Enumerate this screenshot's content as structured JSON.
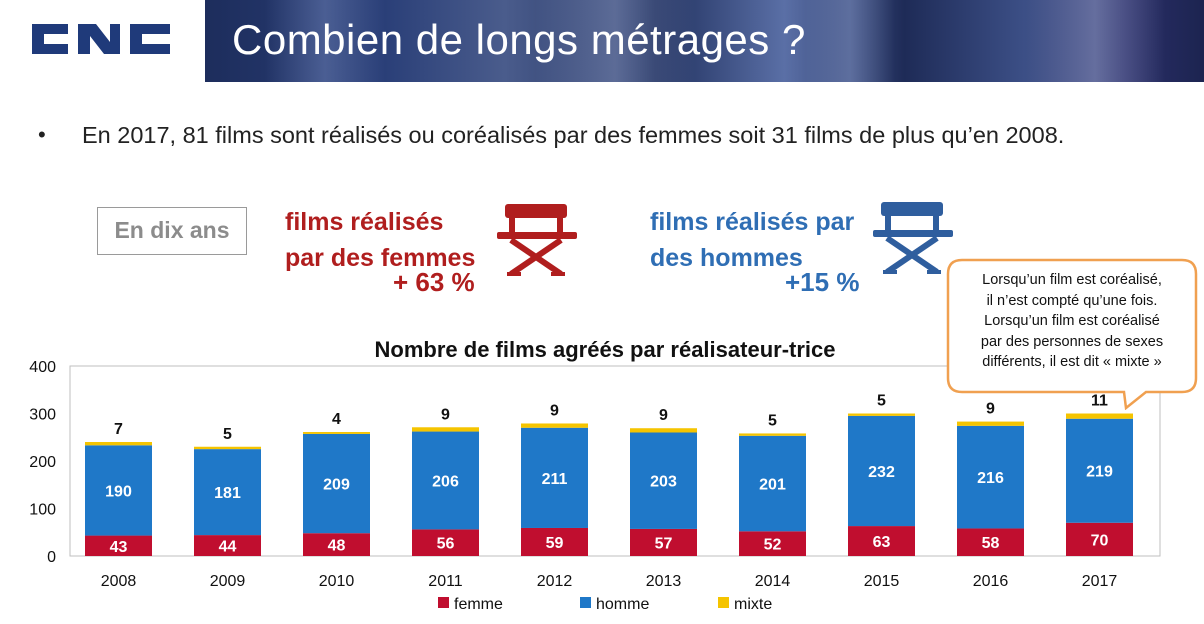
{
  "header": {
    "logo_text": "CNC",
    "title": "Combien de longs métrages ?"
  },
  "bullet": {
    "symbol": "•",
    "text": "En 2017, 81 films sont réalisés ou coréalisés par des femmes soit 31 films de plus qu’en 2008."
  },
  "summary": {
    "box_label": "En dix ans",
    "women": {
      "line1": "films réalisés",
      "line2": "par des femmes",
      "change": "+ 63 %",
      "icon": "director-chair-icon",
      "color": "#b01e1e"
    },
    "men": {
      "line1": "films réalisés par",
      "line2": "des hommes",
      "change": "+15 %",
      "icon": "director-chair-icon",
      "color": "#2f6eb4"
    }
  },
  "callout": {
    "lines": [
      "Lorsqu’un film est coréalisé,",
      "il n’est compté qu’une fois.",
      "Lorsqu’un film est coréalisé",
      "par des personnes de sexes",
      "différents, il est dit « mixte »"
    ],
    "border_color": "#f0a050"
  },
  "chart_data": {
    "type": "bar",
    "stacked": true,
    "title": "Nombre de films agréés par réalisateur-trice",
    "categories": [
      "2008",
      "2009",
      "2010",
      "2011",
      "2012",
      "2013",
      "2014",
      "2015",
      "2016",
      "2017"
    ],
    "series": [
      {
        "name": "femme",
        "color": "#c00e2f",
        "values": [
          43,
          44,
          48,
          56,
          59,
          57,
          52,
          63,
          58,
          70
        ]
      },
      {
        "name": "homme",
        "color": "#1f78c8",
        "values": [
          190,
          181,
          209,
          206,
          211,
          203,
          201,
          232,
          216,
          219
        ]
      },
      {
        "name": "mixte",
        "color": "#f5c400",
        "values": [
          7,
          5,
          4,
          9,
          9,
          9,
          5,
          5,
          9,
          11
        ]
      }
    ],
    "yticks": [
      "0",
      "100",
      "200",
      "300",
      "400"
    ],
    "ylim": [
      0,
      400
    ],
    "legend_position": "bottom",
    "grid": false
  }
}
